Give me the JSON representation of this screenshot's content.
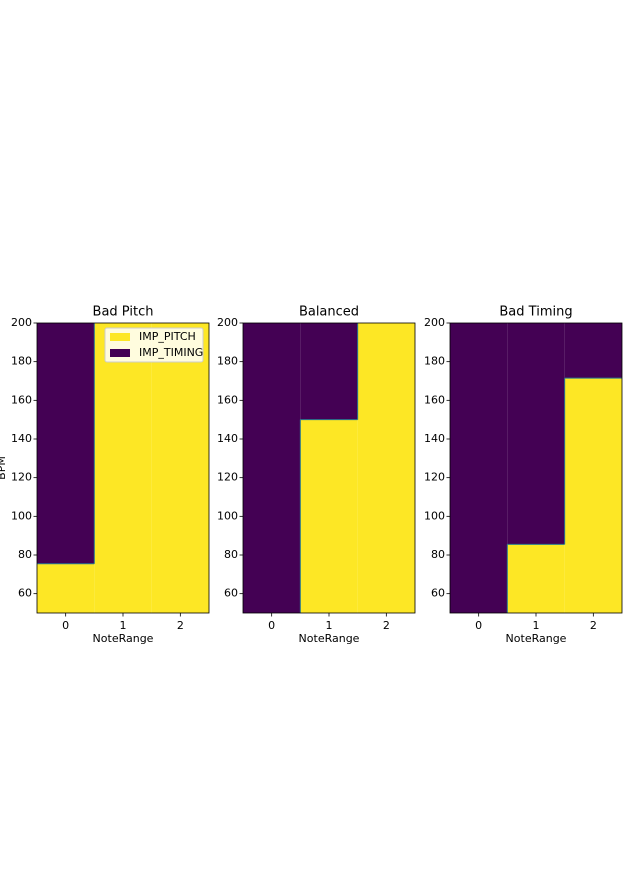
{
  "chart_data": [
    {
      "type": "region",
      "title": "Bad Pitch",
      "x_label": "NoteRange",
      "y_label": "BPM",
      "categories": [
        0,
        1,
        2
      ],
      "boundary": [
        75.5,
        200,
        200
      ],
      "regions": [
        {
          "name": "IMP_PITCH",
          "color": "#fde725"
        },
        {
          "name": "IMP_TIMING",
          "color": "#440154"
        }
      ],
      "xlim": [
        -0.5,
        2.5
      ],
      "xticks": [
        0,
        1,
        2
      ],
      "ylim": [
        50,
        200
      ],
      "yticks": [
        60,
        80,
        100,
        120,
        140,
        160,
        180,
        200
      ],
      "legend": "upper right"
    },
    {
      "type": "region",
      "title": "Balanced",
      "x_label": "NoteRange",
      "categories": [
        0,
        1,
        2
      ],
      "boundary": [
        50,
        150,
        200
      ],
      "regions": [
        {
          "name": "IMP_PITCH",
          "color": "#fde725"
        },
        {
          "name": "IMP_TIMING",
          "color": "#440154"
        }
      ],
      "xlim": [
        -0.5,
        2.5
      ],
      "xticks": [
        0,
        1,
        2
      ],
      "ylim": [
        50,
        200
      ],
      "yticks": [
        60,
        80,
        100,
        120,
        140,
        160,
        180,
        200
      ]
    },
    {
      "type": "region",
      "title": "Bad Timing",
      "x_label": "NoteRange",
      "categories": [
        0,
        1,
        2
      ],
      "boundary": [
        50,
        85.5,
        171.5
      ],
      "regions": [
        {
          "name": "IMP_PITCH",
          "color": "#fde725"
        },
        {
          "name": "IMP_TIMING",
          "color": "#440154"
        }
      ],
      "xlim": [
        -0.5,
        2.5
      ],
      "xticks": [
        0,
        1,
        2
      ],
      "ylim": [
        50,
        200
      ],
      "yticks": [
        60,
        80,
        100,
        120,
        140,
        160,
        180,
        200
      ]
    }
  ]
}
